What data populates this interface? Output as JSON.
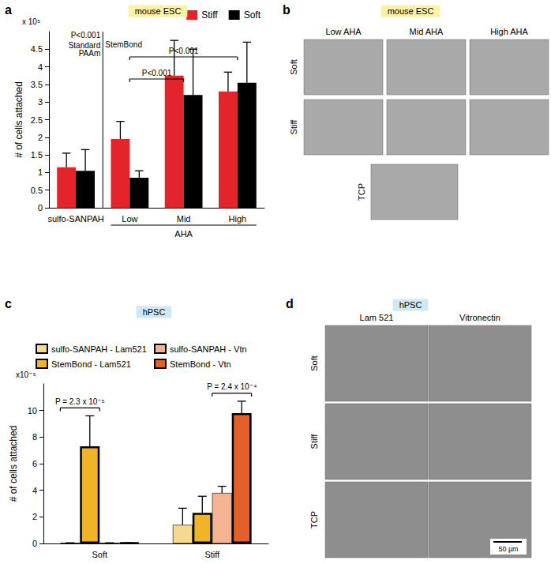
{
  "chart_data": [
    {
      "type": "bar",
      "panel_label": "a",
      "title": "mouse ESC",
      "y_label": "# of cells attached",
      "y_unit": "x 10⁵",
      "categories": [
        "sulfo-SANPAH",
        "Low",
        "Mid",
        "High"
      ],
      "category_group": {
        "label": "AHA",
        "from": "Low",
        "to": "High"
      },
      "series": [
        {
          "name": "Stiff",
          "color": "#e3242b",
          "values": [
            1.15,
            1.95,
            3.75,
            3.3
          ],
          "errors": [
            0.4,
            0.5,
            1.0,
            0.55
          ]
        },
        {
          "name": "Soft",
          "color": "#000000",
          "values": [
            1.05,
            0.85,
            3.2,
            3.55
          ],
          "errors": [
            0.6,
            0.2,
            1.3,
            1.15
          ]
        }
      ],
      "ylim": [
        0,
        5
      ],
      "yticks": [
        0,
        0.5,
        1,
        1.5,
        2,
        2.5,
        3,
        3.5,
        4,
        4.5
      ],
      "grid": false,
      "legend": "top-right",
      "divider": {
        "after": "sulfo-SANPAH",
        "label": "P<0.001",
        "left_label": "Standard\nPAAm",
        "right_label": "StemBond"
      },
      "comparisons": [
        {
          "from": "Low",
          "to": "High",
          "label": "P<0.001"
        },
        {
          "from": "Low",
          "to": "Mid",
          "label": "P<0.001"
        }
      ]
    },
    {
      "type": "bar",
      "panel_label": "c",
      "title": "hPSC",
      "y_label": "# of cells attached",
      "y_unit": "x10⁻⁵",
      "categories": [
        "Soft",
        "Stiff"
      ],
      "series": [
        {
          "name": "sulfo-SANPAH - Lam521",
          "color": "#f7d88f",
          "line_style": "thin",
          "values": [
            0.05,
            1.4
          ],
          "errors": [
            0,
            1.25
          ]
        },
        {
          "name": "StemBond - Lam521",
          "color": "#f0b429",
          "line_style": "bold",
          "values": [
            7.3,
            2.3
          ],
          "errors": [
            2.3,
            1.25
          ]
        },
        {
          "name": "sulfo-SANPAH - Vtn",
          "color": "#f4b494",
          "line_style": "thin",
          "values": [
            0.05,
            3.8
          ],
          "errors": [
            0,
            0.5
          ]
        },
        {
          "name": "StemBond - Vtn",
          "color": "#e3602b",
          "line_style": "bold",
          "values": [
            0.05,
            9.8
          ],
          "errors": [
            0,
            0.9
          ]
        }
      ],
      "ylim": [
        0,
        12
      ],
      "yticks": [
        0,
        2,
        4,
        6,
        8,
        10
      ],
      "grid": false,
      "legend": "top-left",
      "comparisons": [
        {
          "category": "Soft",
          "from": "sulfo-SANPAH - Lam521",
          "to": "StemBond - Lam521",
          "label": "P = 2.3 x 10⁻⁵"
        },
        {
          "category": "Stiff",
          "from": "sulfo-SANPAH - Vtn",
          "to": "StemBond - Vtn",
          "label": "P = 2.4 x 10⁻⁴"
        }
      ]
    }
  ],
  "images": [
    {
      "panel_label": "b",
      "title": "mouse ESC",
      "columns": [
        "Low AHA",
        "Mid AHA",
        "High AHA"
      ],
      "rows": [
        "Soft",
        "Stiff"
      ],
      "extra_row": "TCP"
    },
    {
      "panel_label": "d",
      "title": "hPSC",
      "columns": [
        "Lam 521",
        "Vitronectin"
      ],
      "rows": [
        "Soft",
        "Stiff",
        "TCP"
      ],
      "scale_bar": "50 µm"
    }
  ]
}
